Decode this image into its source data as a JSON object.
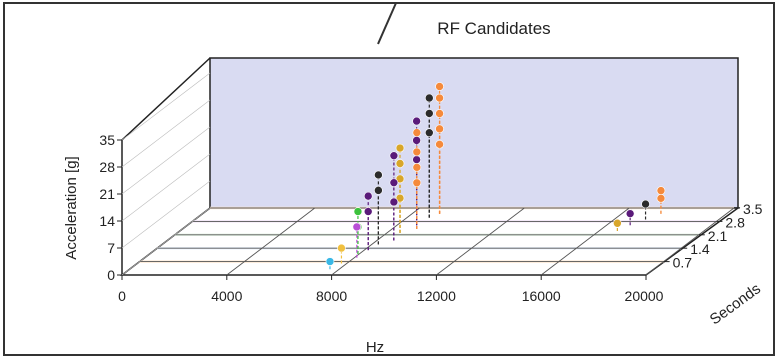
{
  "chart_data": {
    "type": "scatter",
    "title": "RF Candidates",
    "xlabel": "Hz",
    "ylabel": "Acceleration [g]",
    "zlabel": "Seconds",
    "x_ticks": [
      "0",
      "4000",
      "8000",
      "12000",
      "16000",
      "20000"
    ],
    "y_ticks": [
      "0",
      "7",
      "14",
      "21",
      "28",
      "35"
    ],
    "z_ticks": [
      "0.7",
      "1.4",
      "2.1",
      "2.8",
      "3.5"
    ],
    "xlim": [
      0,
      20000
    ],
    "ylim": [
      0,
      35
    ],
    "zlim": [
      0,
      3.5
    ],
    "grid": true,
    "plot_style": "3d stem",
    "colors": {
      "back_wall": "#d9dbf2",
      "floor": "#ffffff",
      "series": [
        "#f58a3c",
        "#2b2b2b",
        "#5a1a7a",
        "#d8a62a",
        "#3cc23c",
        "#39b8e6",
        "#b94fd6",
        "#f0c040"
      ]
    },
    "points": [
      {
        "hz": 9050,
        "sec": 3.2,
        "g": 33,
        "color": "#f58a3c"
      },
      {
        "hz": 9050,
        "sec": 3.2,
        "g": 30,
        "color": "#f58a3c"
      },
      {
        "hz": 9050,
        "sec": 3.2,
        "g": 26,
        "color": "#f58a3c"
      },
      {
        "hz": 9050,
        "sec": 3.2,
        "g": 22,
        "color": "#f58a3c"
      },
      {
        "hz": 9050,
        "sec": 3.2,
        "g": 18,
        "color": "#f58a3c"
      },
      {
        "hz": 8850,
        "sec": 3.0,
        "g": 31,
        "color": "#2b2b2b"
      },
      {
        "hz": 8850,
        "sec": 3.0,
        "g": 27,
        "color": "#2b2b2b"
      },
      {
        "hz": 8850,
        "sec": 3.0,
        "g": 22,
        "color": "#2b2b2b"
      },
      {
        "hz": 8750,
        "sec": 2.6,
        "g": 27,
        "color": "#5a1a7a"
      },
      {
        "hz": 8750,
        "sec": 2.6,
        "g": 22,
        "color": "#5a1a7a"
      },
      {
        "hz": 8750,
        "sec": 2.6,
        "g": 17,
        "color": "#5a1a7a"
      },
      {
        "hz": 8950,
        "sec": 2.4,
        "g": 25,
        "color": "#f58a3c"
      },
      {
        "hz": 8950,
        "sec": 2.4,
        "g": 20,
        "color": "#f58a3c"
      },
      {
        "hz": 8950,
        "sec": 2.4,
        "g": 16,
        "color": "#f58a3c"
      },
      {
        "hz": 8950,
        "sec": 2.4,
        "g": 12,
        "color": "#f58a3c"
      },
      {
        "hz": 8500,
        "sec": 2.2,
        "g": 22,
        "color": "#d8a62a"
      },
      {
        "hz": 8500,
        "sec": 2.2,
        "g": 18,
        "color": "#d8a62a"
      },
      {
        "hz": 8500,
        "sec": 2.2,
        "g": 14,
        "color": "#d8a62a"
      },
      {
        "hz": 8500,
        "sec": 2.2,
        "g": 9,
        "color": "#d8a62a"
      },
      {
        "hz": 8650,
        "sec": 1.8,
        "g": 22,
        "color": "#5a1a7a"
      },
      {
        "hz": 8650,
        "sec": 1.8,
        "g": 15,
        "color": "#5a1a7a"
      },
      {
        "hz": 8650,
        "sec": 1.8,
        "g": 10,
        "color": "#5a1a7a"
      },
      {
        "hz": 8250,
        "sec": 1.6,
        "g": 18,
        "color": "#2b2b2b"
      },
      {
        "hz": 8250,
        "sec": 1.6,
        "g": 14,
        "color": "#2b2b2b"
      },
      {
        "hz": 8150,
        "sec": 1.3,
        "g": 14,
        "color": "#5a1a7a"
      },
      {
        "hz": 8150,
        "sec": 1.3,
        "g": 10,
        "color": "#5a1a7a"
      },
      {
        "hz": 7950,
        "sec": 1.1,
        "g": 11,
        "color": "#3cc23c"
      },
      {
        "hz": 7950,
        "sec": 1.1,
        "g": 7,
        "color": "#3cc23c"
      },
      {
        "hz": 8100,
        "sec": 0.9,
        "g": 8,
        "color": "#b94fd6"
      },
      {
        "hz": 7800,
        "sec": 0.6,
        "g": 4,
        "color": "#f0c040"
      },
      {
        "hz": 7650,
        "sec": 0.3,
        "g": 2,
        "color": "#39b8e6"
      },
      {
        "hz": 17500,
        "sec": 3.2,
        "g": 6,
        "color": "#f58a3c"
      },
      {
        "hz": 17500,
        "sec": 3.2,
        "g": 4,
        "color": "#f58a3c"
      },
      {
        "hz": 17200,
        "sec": 2.9,
        "g": 4,
        "color": "#2b2b2b"
      },
      {
        "hz": 16900,
        "sec": 2.6,
        "g": 3,
        "color": "#5a1a7a"
      },
      {
        "hz": 16700,
        "sec": 2.3,
        "g": 2,
        "color": "#d8a62a"
      }
    ]
  }
}
